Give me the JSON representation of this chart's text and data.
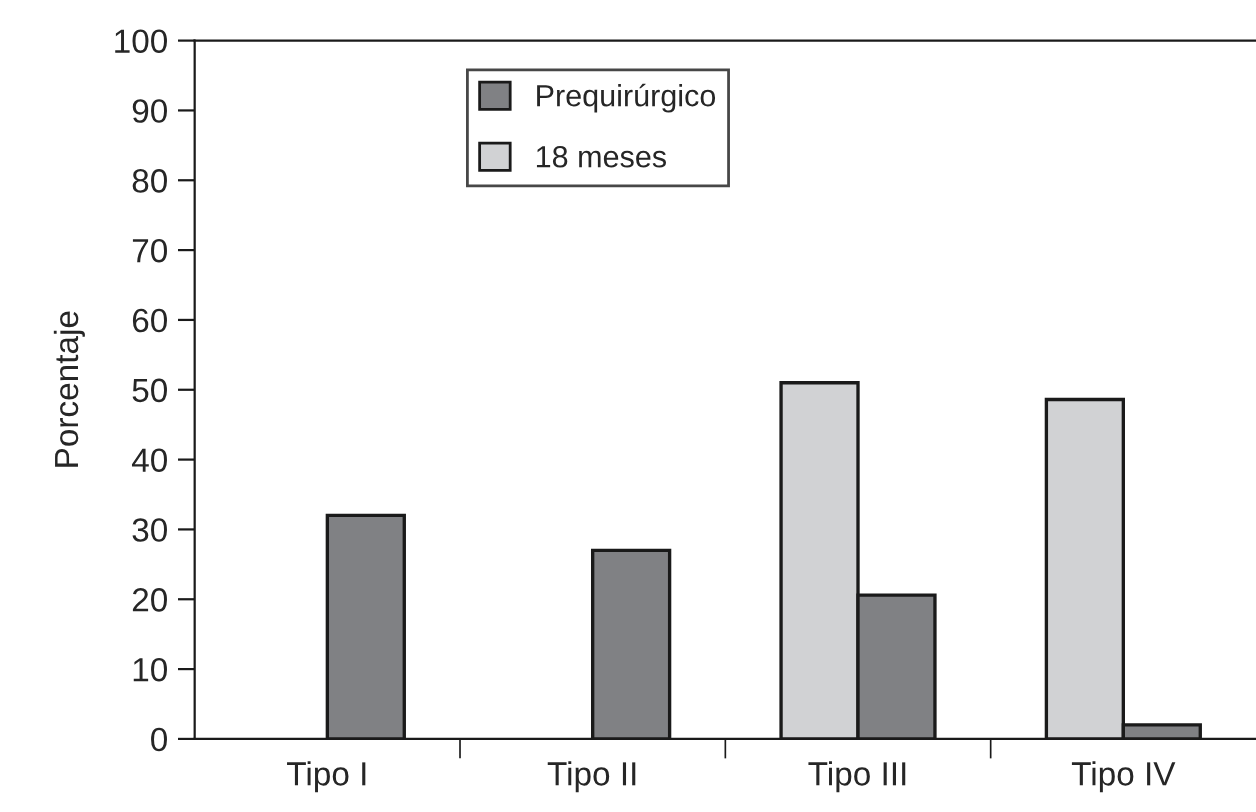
{
  "chart_data": {
    "type": "bar",
    "ylabel": "Porcentaje",
    "categories": [
      "Tipo I",
      "Tipo II",
      "Tipo III",
      "Tipo IV"
    ],
    "series": [
      {
        "name": "18 meses",
        "color": "#d1d2d4",
        "values": [
          null,
          null,
          51,
          48.6
        ]
      },
      {
        "name": "Prequirúrgico",
        "color": "#808184",
        "values": [
          32,
          27,
          20.6,
          2
        ]
      }
    ],
    "ylim": [
      0,
      100
    ],
    "yticks": [
      0,
      10,
      20,
      30,
      40,
      50,
      60,
      70,
      80,
      90,
      100
    ],
    "grid": false,
    "legend": "top"
  }
}
